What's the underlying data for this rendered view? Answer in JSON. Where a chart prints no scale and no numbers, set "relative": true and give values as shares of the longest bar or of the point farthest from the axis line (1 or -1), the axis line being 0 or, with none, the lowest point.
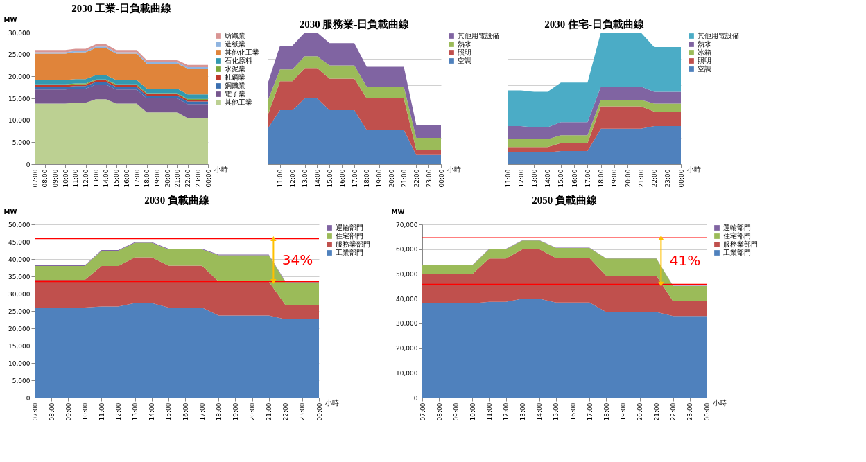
{
  "chart_data": [
    {
      "type": "area",
      "stacked": true,
      "title": "2030 工業-日負載曲線",
      "ylabel": "MW",
      "xlabel": "小時",
      "categories": [
        "07:00",
        "08:00",
        "09:00",
        "10:00",
        "11:00",
        "12:00",
        "13:00",
        "14:00",
        "15:00",
        "16:00",
        "17:00",
        "18:00",
        "19:00",
        "20:00",
        "21:00",
        "22:00",
        "23:00",
        "00:00"
      ],
      "ylim": [
        0,
        30000
      ],
      "yticks": [
        0,
        {
          "value": 5000,
          "label": "5,000"
        },
        {
          "value": 10000,
          "label": "10,000"
        },
        {
          "value": 15000,
          "label": "15,000"
        },
        {
          "value": 20000,
          "label": "20,000"
        },
        {
          "value": 25000,
          "label": "25,000"
        },
        {
          "value": 30000,
          "label": "30,000"
        }
      ],
      "grid": "y",
      "legend": "right",
      "series": [
        {
          "name": "其他工業",
          "color": "#bcd092",
          "values": [
            13800,
            13800,
            13800,
            13800,
            14000,
            14000,
            14800,
            14800,
            13800,
            13800,
            13800,
            11800,
            11800,
            11800,
            11800,
            10500,
            10500,
            10500
          ]
        },
        {
          "name": "電子業",
          "color": "#76568e",
          "values": [
            3200,
            3200,
            3200,
            3200,
            3200,
            3200,
            3300,
            3300,
            3200,
            3200,
            3200,
            3200,
            3200,
            3200,
            3200,
            3200,
            3200,
            3200
          ]
        },
        {
          "name": "鋼鐵業",
          "color": "#3b6fb0",
          "values": [
            600,
            600,
            600,
            600,
            600,
            600,
            600,
            600,
            600,
            600,
            600,
            600,
            600,
            600,
            600,
            600,
            600,
            600
          ]
        },
        {
          "name": "軋鋼業",
          "color": "#c0392b",
          "values": [
            400,
            400,
            400,
            400,
            400,
            400,
            400,
            400,
            400,
            400,
            400,
            400,
            400,
            400,
            400,
            400,
            400,
            400
          ]
        },
        {
          "name": "水泥業",
          "color": "#7ea83a",
          "values": [
            200,
            200,
            200,
            200,
            200,
            200,
            200,
            200,
            200,
            200,
            200,
            200,
            200,
            200,
            200,
            200,
            200,
            200
          ]
        },
        {
          "name": "石化原料",
          "color": "#3399b0",
          "values": [
            1000,
            1000,
            1000,
            1000,
            1000,
            1000,
            1000,
            1000,
            1000,
            1000,
            1000,
            1000,
            1000,
            1000,
            1000,
            1000,
            1000,
            1000
          ]
        },
        {
          "name": "其他化工業",
          "color": "#e0843a",
          "values": [
            6000,
            6000,
            6000,
            6000,
            6100,
            6100,
            6200,
            6200,
            6000,
            6000,
            6000,
            5700,
            5700,
            5700,
            5700,
            5900,
            5900,
            5900
          ]
        },
        {
          "name": "造紙業",
          "color": "#8fb4e0",
          "values": [
            300,
            300,
            300,
            300,
            300,
            300,
            300,
            300,
            300,
            300,
            300,
            300,
            300,
            300,
            300,
            300,
            300,
            300
          ]
        },
        {
          "name": "紡織業",
          "color": "#d99594",
          "values": [
            500,
            500,
            500,
            500,
            500,
            500,
            500,
            500,
            500,
            500,
            500,
            500,
            500,
            500,
            500,
            500,
            500,
            500
          ]
        }
      ]
    },
    {
      "type": "area",
      "stacked": true,
      "relative": true,
      "title": "2030 服務業-日負載曲線",
      "xlabel": "小時",
      "categories": [
        null,
        "11:00",
        "12:00",
        "13:00",
        "14:00",
        "15:00",
        "16:00",
        "17:00",
        "18:00",
        "19:00",
        "20:00",
        "21:00",
        "22:00",
        "23:00",
        "00:00"
      ],
      "grid": "y",
      "legend": "right",
      "series": [
        {
          "name": "空調",
          "color": "#4f81bd",
          "values": [
            0.27,
            0.41,
            0.41,
            0.5,
            0.5,
            0.41,
            0.41,
            0.41,
            0.26,
            0.26,
            0.26,
            0.26,
            0.07,
            0.07,
            0.07
          ]
        },
        {
          "name": "照明",
          "color": "#c0504d",
          "values": [
            0.1,
            0.22,
            0.22,
            0.23,
            0.23,
            0.24,
            0.24,
            0.24,
            0.24,
            0.24,
            0.24,
            0.24,
            0.04,
            0.04,
            0.04
          ]
        },
        {
          "name": "熱水",
          "color": "#9bbb59",
          "values": [
            0.11,
            0.09,
            0.09,
            0.09,
            0.09,
            0.1,
            0.1,
            0.1,
            0.09,
            0.09,
            0.09,
            0.09,
            0.09,
            0.09,
            0.09
          ]
        },
        {
          "name": "其他用電設備",
          "color": "#8064a2",
          "values": [
            0.13,
            0.18,
            0.18,
            0.18,
            0.18,
            0.17,
            0.17,
            0.17,
            0.15,
            0.15,
            0.15,
            0.15,
            0.1,
            0.1,
            0.1
          ]
        }
      ]
    },
    {
      "type": "area",
      "stacked": true,
      "relative": true,
      "title": "2030 住宅-日負載曲線",
      "xlabel": "小時",
      "categories": [
        "11:00",
        "12:00",
        "13:00",
        "14:00",
        "15:00",
        "16:00",
        "17:00",
        "18:00",
        "19:00",
        "20:00",
        "21:00",
        "22:00",
        "23:00",
        "00:00"
      ],
      "grid": "y",
      "legend": "right",
      "series": [
        {
          "name": "空調",
          "color": "#4f81bd",
          "values": [
            0.09,
            0.09,
            0.09,
            0.09,
            0.1,
            0.1,
            0.1,
            0.27,
            0.27,
            0.27,
            0.27,
            0.29,
            0.29,
            0.29
          ]
        },
        {
          "name": "照明",
          "color": "#c0504d",
          "values": [
            0.04,
            0.04,
            0.04,
            0.04,
            0.06,
            0.06,
            0.06,
            0.17,
            0.17,
            0.17,
            0.17,
            0.11,
            0.11,
            0.11
          ]
        },
        {
          "name": "冰箱",
          "color": "#9bbb59",
          "values": [
            0.06,
            0.06,
            0.06,
            0.06,
            0.06,
            0.06,
            0.06,
            0.05,
            0.05,
            0.05,
            0.05,
            0.06,
            0.06,
            0.06
          ]
        },
        {
          "name": "熱水",
          "color": "#8064a2",
          "values": [
            0.1,
            0.1,
            0.09,
            0.09,
            0.1,
            0.1,
            0.1,
            0.1,
            0.1,
            0.1,
            0.1,
            0.09,
            0.09,
            0.09
          ]
        },
        {
          "name": "其他用電設備",
          "color": "#4bacc6",
          "values": [
            0.27,
            0.27,
            0.27,
            0.27,
            0.3,
            0.3,
            0.3,
            0.41,
            0.41,
            0.41,
            0.41,
            0.34,
            0.34,
            0.34
          ]
        }
      ]
    },
    {
      "type": "area",
      "stacked": true,
      "title": "2030 負載曲線",
      "ylabel": "MW",
      "xlabel": "小時",
      "categories": [
        "07:00",
        "08:00",
        "09:00",
        "10:00",
        "11:00",
        "12:00",
        "13:00",
        "14:00",
        "15:00",
        "16:00",
        "17:00",
        "18:00",
        "19:00",
        "20:00",
        "21:00",
        "22:00",
        "23:00",
        "00:00"
      ],
      "ylim": [
        0,
        50000
      ],
      "yticks": [
        0,
        {
          "value": 5000,
          "label": "5,000"
        },
        {
          "value": 10000,
          "label": "10,000"
        },
        {
          "value": 15000,
          "label": "15,000"
        },
        {
          "value": 20000,
          "label": "20,000"
        },
        {
          "value": 25000,
          "label": "25,000"
        },
        {
          "value": 30000,
          "label": "30,000"
        },
        {
          "value": 35000,
          "label": "35,000"
        },
        {
          "value": 40000,
          "label": "40,000"
        },
        {
          "value": 45000,
          "label": "45,000"
        },
        {
          "value": 50000,
          "label": "50,000"
        }
      ],
      "grid": "y",
      "legend": "right",
      "ref_lines": [
        {
          "axis": "y",
          "value": 45900,
          "color": "#ff0000"
        },
        {
          "axis": "y",
          "value": 33500,
          "color": "#ff0000"
        }
      ],
      "annotations": [
        "34%"
      ],
      "series": [
        {
          "name": "工業部門",
          "color": "#4f81bd",
          "values": [
            26000,
            26000,
            26000,
            26000,
            26300,
            26300,
            27300,
            27300,
            26000,
            26000,
            26000,
            23700,
            23700,
            23700,
            23700,
            22600,
            22600,
            22600
          ]
        },
        {
          "name": "服務業部門",
          "color": "#c0504d",
          "values": [
            8000,
            8000,
            8000,
            8000,
            11700,
            11700,
            13200,
            13200,
            12100,
            12100,
            12100,
            9800,
            9800,
            9800,
            9800,
            4100,
            4100,
            4100
          ]
        },
        {
          "name": "住宅部門",
          "color": "#9bbb59",
          "values": [
            4000,
            4000,
            4000,
            4000,
            4400,
            4400,
            4200,
            4200,
            4700,
            4700,
            4700,
            7600,
            7600,
            7600,
            7600,
            6600,
            6600,
            6600
          ]
        },
        {
          "name": "運輸部門",
          "color": "#8064a2",
          "values": [
            200,
            200,
            200,
            200,
            200,
            200,
            200,
            200,
            200,
            200,
            200,
            200,
            200,
            200,
            200,
            200,
            200,
            200
          ]
        }
      ]
    },
    {
      "type": "area",
      "stacked": true,
      "title": "2050 負載曲線",
      "ylabel": "MW",
      "xlabel": "小時",
      "categories": [
        "07:00",
        "08:00",
        "09:00",
        "10:00",
        "11:00",
        "12:00",
        "13:00",
        "14:00",
        "15:00",
        "16:00",
        "17:00",
        "18:00",
        "19:00",
        "20:00",
        "21:00",
        "22:00",
        "23:00",
        "00:00"
      ],
      "ylim": [
        0,
        70000
      ],
      "yticks": [
        0,
        {
          "value": 10000,
          "label": "10,000"
        },
        {
          "value": 20000,
          "label": "20,000"
        },
        {
          "value": 30000,
          "label": "30,000"
        },
        {
          "value": 40000,
          "label": "40,000"
        },
        {
          "value": 50000,
          "label": "50,000"
        },
        {
          "value": 60000,
          "label": "60,000"
        },
        {
          "value": 70000,
          "label": "70,000"
        }
      ],
      "grid": "y",
      "legend": "right",
      "ref_lines": [
        {
          "axis": "y",
          "value": 64600,
          "color": "#ff0000"
        },
        {
          "axis": "y",
          "value": 45800,
          "color": "#ff0000"
        }
      ],
      "annotations": [
        "41%"
      ],
      "series": [
        {
          "name": "工業部門",
          "color": "#4f81bd",
          "values": [
            38100,
            38100,
            38100,
            38100,
            38700,
            38700,
            40000,
            40000,
            38400,
            38400,
            38400,
            34600,
            34600,
            34600,
            34600,
            33000,
            33000,
            33000
          ]
        },
        {
          "name": "服務業部門",
          "color": "#c0504d",
          "values": [
            11900,
            11900,
            11900,
            11900,
            17500,
            17500,
            20000,
            20000,
            18000,
            18000,
            18000,
            14700,
            14700,
            14700,
            14700,
            5900,
            5900,
            5900
          ]
        },
        {
          "name": "住宅部門",
          "color": "#9bbb59",
          "values": [
            3500,
            3500,
            3500,
            3500,
            3800,
            3800,
            3500,
            3500,
            4100,
            4100,
            4100,
            6900,
            6900,
            6900,
            6900,
            6200,
            6200,
            6200
          ]
        },
        {
          "name": "運輸部門",
          "color": "#8064a2",
          "values": [
            100,
            100,
            100,
            100,
            100,
            100,
            100,
            100,
            100,
            100,
            100,
            100,
            100,
            100,
            100,
            100,
            100,
            100
          ]
        }
      ]
    }
  ]
}
